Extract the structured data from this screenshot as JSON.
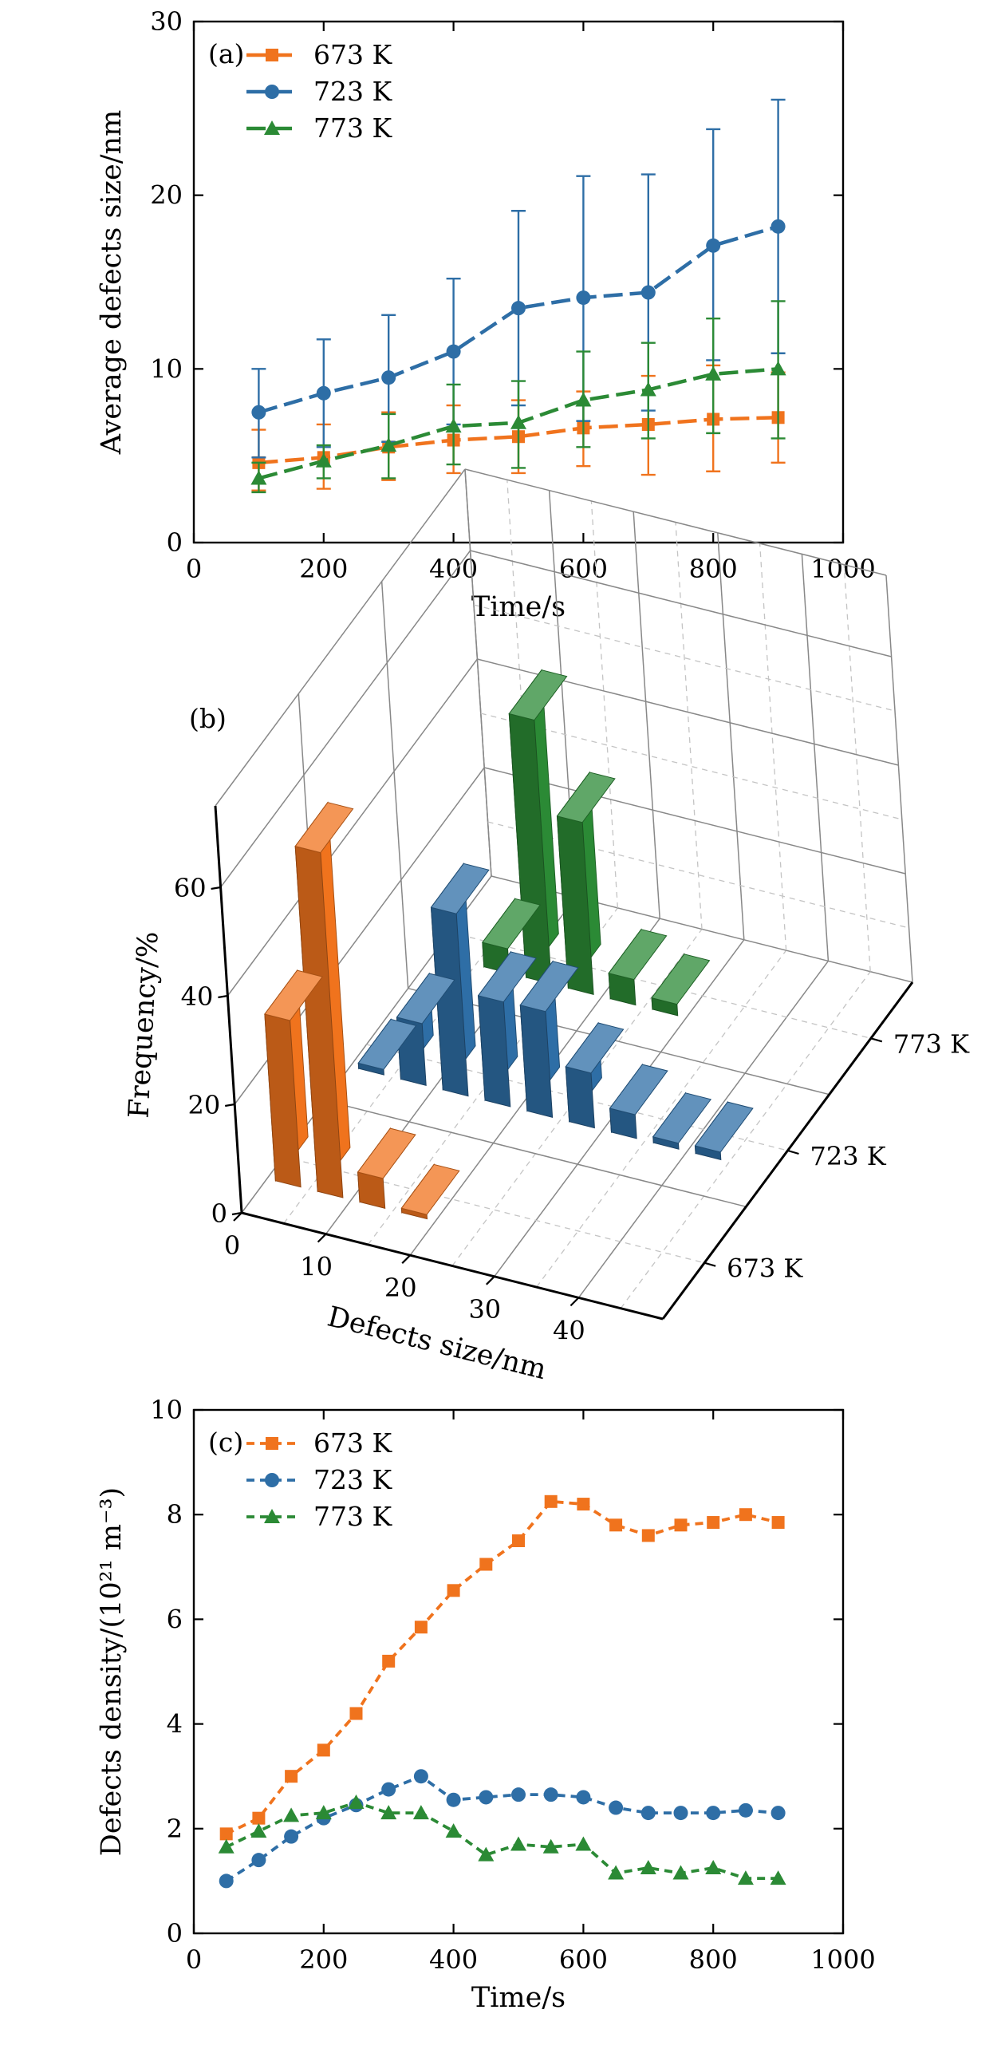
{
  "colors": {
    "673 K": "#f0731d",
    "723 K": "#2e6ea6",
    "773 K": "#2b8a35"
  },
  "chart_data": [
    {
      "id": "a",
      "type": "line",
      "panel_label": "(a)",
      "xlabel": "Time/s",
      "ylabel": "Average defects size/nm",
      "xlim": [
        0,
        1000
      ],
      "ylim": [
        0,
        30
      ],
      "xticks": [
        0,
        200,
        400,
        600,
        800,
        1000
      ],
      "yticks": [
        0,
        10,
        20,
        30
      ],
      "legend_position": "top-left",
      "x": [
        100,
        200,
        300,
        400,
        500,
        600,
        700,
        800,
        900
      ],
      "series": [
        {
          "name": "673 K",
          "marker": "square",
          "values": [
            4.6,
            4.9,
            5.5,
            5.9,
            6.1,
            6.6,
            6.8,
            7.1,
            7.2
          ],
          "error_low": [
            3.0,
            3.1,
            3.6,
            4.0,
            4.0,
            4.4,
            3.9,
            4.1,
            4.6
          ],
          "error_high": [
            6.5,
            6.8,
            7.5,
            7.9,
            8.2,
            8.7,
            9.6,
            10.2,
            9.8
          ]
        },
        {
          "name": "723 K",
          "marker": "circle",
          "values": [
            7.5,
            8.6,
            9.5,
            11.0,
            13.5,
            14.1,
            14.4,
            17.1,
            18.2
          ],
          "error_low": [
            4.9,
            5.5,
            5.8,
            6.8,
            7.9,
            7.0,
            7.6,
            10.5,
            10.9
          ],
          "error_high": [
            10.0,
            11.7,
            13.1,
            15.2,
            19.1,
            21.1,
            21.2,
            23.8,
            25.5
          ]
        },
        {
          "name": "773 K",
          "marker": "triangle",
          "values": [
            3.7,
            4.7,
            5.6,
            6.7,
            6.9,
            8.2,
            8.8,
            9.7,
            10.0
          ],
          "error_low": [
            2.9,
            3.7,
            3.7,
            4.5,
            4.3,
            5.5,
            6.0,
            6.3,
            6.0
          ],
          "error_high": [
            4.6,
            5.6,
            7.4,
            9.1,
            9.3,
            11.0,
            11.5,
            12.9,
            13.9
          ]
        }
      ]
    },
    {
      "id": "b",
      "type": "bar3d",
      "panel_label": "(b)",
      "xlabel": "Defects size/nm",
      "ylabel": "Frequency/%",
      "xticks": [
        0,
        10,
        20,
        30,
        40
      ],
      "zticks": [
        0,
        20,
        40,
        60
      ],
      "depth_categories": [
        "673 K",
        "723 K",
        "773 K"
      ],
      "bins": [
        2.5,
        7.5,
        12.5,
        17.5,
        22.5,
        27.5,
        32.5,
        37.5,
        42.5,
        47.5
      ],
      "series": [
        {
          "name": "673 K",
          "values": [
            30.7,
            63.6,
            5.5,
            0.8,
            0,
            0,
            0,
            0,
            0,
            0
          ]
        },
        {
          "name": "723 K",
          "values": [
            1.0,
            11.4,
            33.6,
            19.3,
            19.5,
            10.1,
            4.4,
            1.1,
            1.4,
            0
          ]
        },
        {
          "name": "773 K",
          "values": [
            0,
            4.5,
            48.6,
            31.7,
            4.7,
            2.1,
            0,
            0,
            0,
            0
          ]
        }
      ]
    },
    {
      "id": "c",
      "type": "line",
      "panel_label": "(c)",
      "xlabel": "Time/s",
      "ylabel": "Defects density/(10²¹ m⁻³)",
      "xlim": [
        0,
        1000
      ],
      "ylim": [
        0,
        10
      ],
      "xticks": [
        0,
        200,
        400,
        600,
        800,
        1000
      ],
      "yticks": [
        0,
        2,
        4,
        6,
        8,
        10
      ],
      "legend_position": "top-left",
      "x": [
        50,
        100,
        150,
        200,
        250,
        300,
        350,
        400,
        450,
        500,
        550,
        600,
        650,
        700,
        750,
        800,
        850,
        900
      ],
      "series": [
        {
          "name": "673 K",
          "marker": "square",
          "values": [
            1.9,
            2.2,
            3.0,
            3.5,
            4.2,
            5.2,
            5.85,
            6.55,
            7.05,
            7.5,
            8.25,
            8.2,
            7.8,
            7.6,
            7.8,
            7.85,
            8.0,
            7.85
          ]
        },
        {
          "name": "723 K",
          "marker": "circle",
          "values": [
            1.0,
            1.4,
            1.85,
            2.2,
            2.45,
            2.75,
            3.0,
            2.55,
            2.6,
            2.65,
            2.65,
            2.6,
            2.4,
            2.3,
            2.3,
            2.3,
            2.35,
            2.3
          ]
        },
        {
          "name": "773 K",
          "marker": "triangle",
          "values": [
            1.65,
            1.95,
            2.25,
            2.3,
            2.5,
            2.3,
            2.3,
            1.95,
            1.5,
            1.7,
            1.65,
            1.7,
            1.15,
            1.25,
            1.15,
            1.25,
            1.05,
            1.05
          ]
        }
      ]
    }
  ]
}
